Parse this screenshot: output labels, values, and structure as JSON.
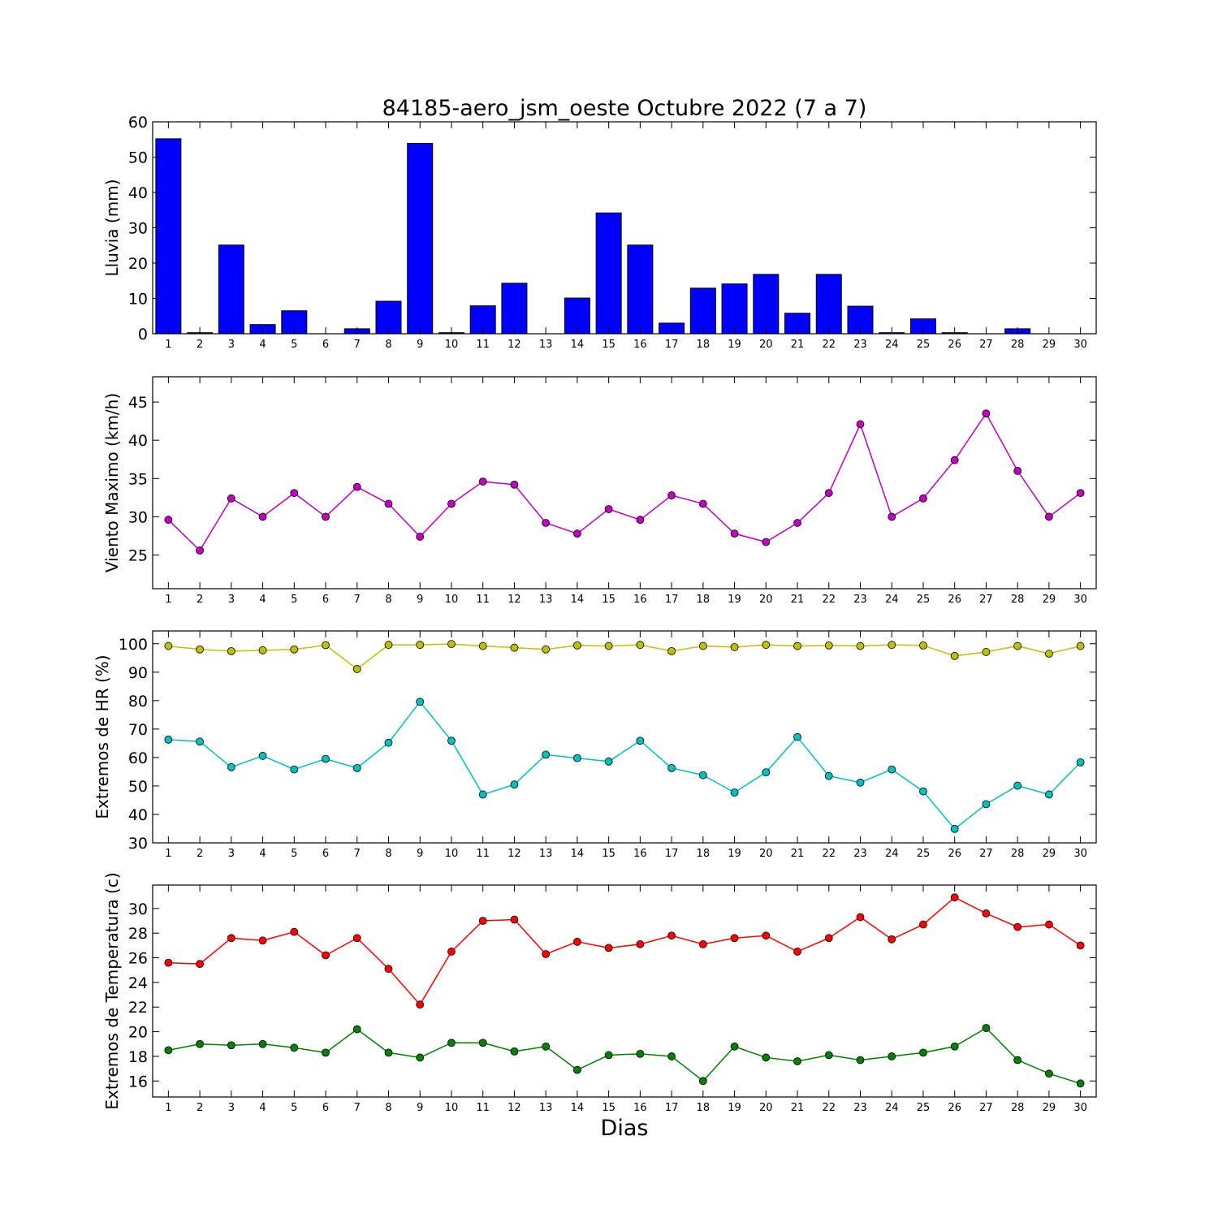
{
  "figure": {
    "title": "84185-aero_jsm_oeste Octubre 2022  (7 a 7)",
    "xlabel": "Dias"
  },
  "chart_data": [
    {
      "type": "bar",
      "ylabel": "Lluvia (mm)",
      "ylim": [
        0,
        60
      ],
      "yticks": [
        0,
        10,
        20,
        30,
        40,
        50,
        60
      ],
      "categories": [
        1,
        2,
        3,
        4,
        5,
        6,
        7,
        8,
        9,
        10,
        11,
        12,
        13,
        14,
        15,
        16,
        17,
        18,
        19,
        20,
        21,
        22,
        23,
        24,
        25,
        26,
        27,
        28,
        29,
        30
      ],
      "series": [
        {
          "color": "#0000ff",
          "values": [
            55.2,
            0.3,
            25.1,
            2.6,
            6.5,
            0,
            1.4,
            9.2,
            53.9,
            0.3,
            7.9,
            14.3,
            0,
            10.1,
            34.2,
            25.1,
            3.0,
            12.9,
            14.1,
            16.8,
            5.8,
            16.8,
            7.8,
            0.3,
            4.2,
            0.3,
            0,
            1.4,
            0,
            0
          ]
        }
      ]
    },
    {
      "type": "line",
      "ylabel": "Viento Maximo (km/h)",
      "ylim": [
        20.6,
        48.3
      ],
      "yticks": [
        25,
        30,
        35,
        40,
        45
      ],
      "categories": [
        1,
        2,
        3,
        4,
        5,
        6,
        7,
        8,
        9,
        10,
        11,
        12,
        13,
        14,
        15,
        16,
        17,
        18,
        19,
        20,
        21,
        22,
        23,
        24,
        25,
        26,
        27,
        28,
        29,
        30
      ],
      "series": [
        {
          "color": "#bf00bf",
          "values": [
            29.6,
            25.6,
            32.4,
            30.0,
            33.1,
            30.0,
            33.9,
            31.7,
            27.4,
            31.7,
            34.6,
            34.2,
            29.2,
            27.8,
            31.0,
            29.6,
            32.8,
            31.7,
            27.8,
            26.7,
            29.2,
            33.1,
            42.1,
            30.0,
            32.4,
            37.4,
            43.5,
            36.0,
            30.0,
            33.1
          ]
        }
      ]
    },
    {
      "type": "line",
      "ylabel": "Extremos de HR (%)",
      "ylim": [
        30,
        104.5
      ],
      "yticks": [
        30,
        40,
        50,
        60,
        70,
        80,
        90,
        100
      ],
      "categories": [
        1,
        2,
        3,
        4,
        5,
        6,
        7,
        8,
        9,
        10,
        11,
        12,
        13,
        14,
        15,
        16,
        17,
        18,
        19,
        20,
        21,
        22,
        23,
        24,
        25,
        26,
        27,
        28,
        29,
        30
      ],
      "series": [
        {
          "color": "#bfbf00",
          "values": [
            99.2,
            98.0,
            97.4,
            97.7,
            98.0,
            99.5,
            91.1,
            99.6,
            99.6,
            99.9,
            99.2,
            98.6,
            98.0,
            99.4,
            99.2,
            99.6,
            97.4,
            99.2,
            98.8,
            99.6,
            99.2,
            99.4,
            99.2,
            99.6,
            99.4,
            95.7,
            97.1,
            99.2,
            96.5,
            99.2
          ]
        },
        {
          "color": "#00bfbf",
          "values": [
            66.3,
            65.6,
            56.6,
            60.6,
            55.8,
            59.5,
            56.3,
            65.2,
            79.6,
            65.9,
            47.0,
            50.5,
            61.0,
            59.8,
            58.6,
            65.9,
            56.3,
            53.8,
            47.7,
            54.8,
            67.2,
            53.5,
            51.2,
            55.8,
            48.1,
            34.9,
            43.6,
            50.1,
            47.0,
            58.3
          ]
        }
      ]
    },
    {
      "type": "line",
      "ylabel": "Extremos de Temperatura (c)",
      "ylim": [
        14.7,
        31.9
      ],
      "yticks": [
        16,
        18,
        20,
        22,
        24,
        26,
        28,
        30
      ],
      "categories": [
        1,
        2,
        3,
        4,
        5,
        6,
        7,
        8,
        9,
        10,
        11,
        12,
        13,
        14,
        15,
        16,
        17,
        18,
        19,
        20,
        21,
        22,
        23,
        24,
        25,
        26,
        27,
        28,
        29,
        30
      ],
      "series": [
        {
          "color": "#ff0000",
          "values": [
            25.6,
            25.5,
            27.6,
            27.4,
            28.1,
            26.2,
            27.6,
            25.1,
            22.2,
            26.5,
            29.0,
            29.1,
            26.3,
            27.3,
            26.8,
            27.1,
            27.8,
            27.1,
            27.6,
            27.8,
            26.5,
            27.6,
            29.3,
            27.5,
            28.7,
            30.9,
            29.6,
            28.5,
            28.7,
            27.0
          ]
        },
        {
          "color": "#008000",
          "values": [
            18.5,
            19.0,
            18.9,
            19.0,
            18.7,
            18.3,
            20.2,
            18.3,
            17.9,
            19.1,
            19.1,
            18.4,
            18.8,
            16.9,
            18.1,
            18.2,
            18.0,
            16.0,
            18.8,
            17.9,
            17.6,
            18.1,
            17.7,
            18.0,
            18.3,
            18.8,
            20.3,
            17.7,
            16.6,
            15.8
          ]
        }
      ]
    }
  ]
}
